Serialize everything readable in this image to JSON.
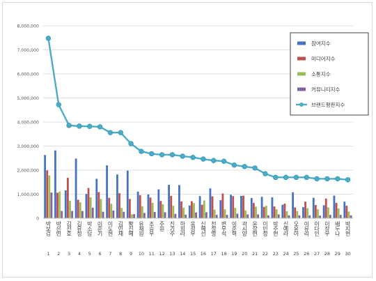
{
  "chart_data": {
    "type": "bar",
    "title": "",
    "xlabel": "",
    "ylabel": "",
    "ylim": [
      0,
      8000000
    ],
    "grid": true,
    "legend_position": "top-right",
    "y_ticks": [
      "0",
      "1,000,000",
      "2,000,000",
      "3,000,000",
      "4,000,000",
      "5,000,000",
      "6,000,000",
      "7,000,000",
      "8,000,000"
    ],
    "categories": [
      "1",
      "2",
      "3",
      "4",
      "5",
      "6",
      "7",
      "8",
      "9",
      "10",
      "11",
      "12",
      "13",
      "14",
      "15",
      "16",
      "17",
      "18",
      "19",
      "20",
      "21",
      "22",
      "23",
      "24",
      "25",
      "26",
      "27",
      "28",
      "29",
      "30"
    ],
    "names": [
      "박보검",
      "박은빈",
      "김선호",
      "김유정",
      "박소담",
      "이준기",
      "이도현",
      "김민재",
      "황신혜",
      "유재원",
      "조승우",
      "주원",
      "진기주",
      "하희라",
      "옹성우",
      "신혜선",
      "천정명",
      "변우석",
      "이준혁",
      "곽시양",
      "윤상현",
      "이민정",
      "박주현",
      "신예라",
      "오윤아",
      "이유리",
      "이다인",
      "이장우",
      "배두나",
      "박지현"
    ],
    "series": [
      {
        "name": "참여지수",
        "color": "#4472c4",
        "values": [
          2630000,
          2820000,
          1160000,
          2480000,
          1010000,
          1640000,
          2200000,
          1820000,
          1980000,
          1110000,
          990000,
          1200000,
          1390000,
          1380000,
          530000,
          920000,
          1240000,
          750000,
          980000,
          930000,
          840000,
          890000,
          870000,
          560000,
          1080000,
          460000,
          850000,
          540000,
          940000,
          690000
        ]
      },
      {
        "name": "미디어지수",
        "color": "#c0504d",
        "values": [
          1990000,
          1060000,
          1680000,
          770000,
          1260000,
          1090000,
          850000,
          1040000,
          800000,
          960000,
          860000,
          720000,
          930000,
          700000,
          710000,
          560000,
          910000,
          1030000,
          920000,
          940000,
          640000,
          470000,
          490000,
          610000,
          450000,
          690000,
          550000,
          820000,
          640000,
          520000
        ]
      },
      {
        "name": "소통지수",
        "color": "#9bbb59",
        "values": [
          1780000,
          1110000,
          730000,
          660000,
          870000,
          800000,
          600000,
          430000,
          160000,
          500000,
          640000,
          580000,
          520000,
          440000,
          630000,
          740000,
          360000,
          370000,
          430000,
          330000,
          480000,
          520000,
          370000,
          290000,
          300000,
          420000,
          370000,
          450000,
          410000,
          280000
        ]
      },
      {
        "name": "커뮤니티지수",
        "color": "#8064a2",
        "values": [
          1070000,
          300000,
          300000,
          300000,
          440000,
          270000,
          320000,
          270000,
          170000,
          220000,
          260000,
          250000,
          180000,
          150000,
          240000,
          250000,
          140000,
          140000,
          190000,
          160000,
          160000,
          120000,
          160000,
          120000,
          120000,
          120000,
          110000,
          140000,
          140000,
          120000
        ]
      },
      {
        "name": "브랜드평판지수",
        "color": "#4bacc6",
        "type": "line",
        "values": [
          7480000,
          4720000,
          3860000,
          3830000,
          3820000,
          3800000,
          3560000,
          3560000,
          3100000,
          2780000,
          2680000,
          2640000,
          2640000,
          2580000,
          2530000,
          2460000,
          2400000,
          2370000,
          2210000,
          2150000,
          2090000,
          1850000,
          1700000,
          1700000,
          1700000,
          1700000,
          1640000,
          1640000,
          1640000,
          1600000
        ]
      }
    ]
  }
}
